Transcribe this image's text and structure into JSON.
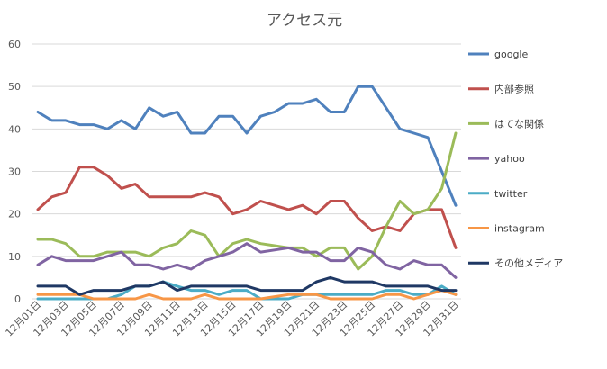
{
  "chart_data": {
    "type": "line",
    "title": "アクセス元",
    "xlabel": "",
    "ylabel": "",
    "ylim": [
      0,
      60
    ],
    "yticks": [
      "0",
      "10",
      "20",
      "30",
      "40",
      "50",
      "60"
    ],
    "grid": true,
    "legend": "right",
    "categories": [
      "12月01日",
      "12月02日",
      "12月03日",
      "12月04日",
      "12月05日",
      "12月06日",
      "12月07日",
      "12月08日",
      "12月09日",
      "12月10日",
      "12月11日",
      "12月12日",
      "12月13日",
      "12月14日",
      "12月15日",
      "12月16日",
      "12月17日",
      "12月18日",
      "12月19日",
      "12月20日",
      "12月21日",
      "12月22日",
      "12月23日",
      "12月24日",
      "12月25日",
      "12月26日",
      "12月27日",
      "12月28日",
      "12月29日",
      "12月30日",
      "12月31日"
    ],
    "tick_labels": [
      "12月01日",
      "12月03日",
      "12月05日",
      "12月07日",
      "12月09日",
      "12月11日",
      "12月13日",
      "12月15日",
      "12月17日",
      "12月19日",
      "12月21日",
      "12月23日",
      "12月25日",
      "12月27日",
      "12月29日",
      "12月31日"
    ],
    "series": [
      {
        "name": "google",
        "color": "#4f81bd",
        "values": [
          44,
          42,
          42,
          41,
          41,
          40,
          42,
          40,
          45,
          43,
          44,
          39,
          39,
          43,
          43,
          39,
          43,
          44,
          46,
          46,
          47,
          44,
          44,
          50,
          50,
          45,
          40,
          39,
          38,
          30,
          22
        ]
      },
      {
        "name": "内部参照",
        "color": "#c0504d",
        "values": [
          21,
          24,
          25,
          31,
          31,
          29,
          26,
          27,
          24,
          24,
          24,
          24,
          25,
          24,
          20,
          21,
          23,
          22,
          21,
          22,
          20,
          23,
          23,
          19,
          16,
          17,
          16,
          20,
          21,
          21,
          12
        ]
      },
      {
        "name": "はてな関係",
        "color": "#9bbb59",
        "values": [
          14,
          14,
          13,
          10,
          10,
          11,
          11,
          11,
          10,
          12,
          13,
          16,
          15,
          10,
          13,
          14,
          13,
          12.5,
          12,
          12,
          10,
          12,
          12,
          7,
          10,
          17,
          23,
          20,
          21,
          26,
          39
        ]
      },
      {
        "name": "yahoo",
        "color": "#8064a2",
        "values": [
          8,
          10,
          9,
          9,
          9,
          10,
          11,
          8,
          8,
          7,
          8,
          7,
          9,
          10,
          11,
          13,
          11,
          11.5,
          12,
          11,
          11,
          9,
          9,
          12,
          11,
          8,
          7,
          9,
          8,
          8,
          5
        ]
      },
      {
        "name": "twitter",
        "color": "#4bacc6",
        "values": [
          0,
          0,
          0,
          0,
          0,
          0,
          1,
          3,
          3,
          4,
          3,
          2,
          2,
          1,
          2,
          2,
          0,
          0,
          0,
          1,
          1,
          1,
          1,
          1,
          1,
          2,
          2,
          1,
          1,
          3,
          1
        ]
      },
      {
        "name": "instagram",
        "color": "#f79646",
        "values": [
          1,
          1,
          1,
          1,
          0,
          0,
          0,
          0,
          1,
          0,
          0,
          0,
          1,
          0,
          0,
          0,
          0,
          0.5,
          1,
          1,
          1,
          0,
          0,
          0,
          0,
          1,
          1,
          0,
          1,
          2,
          1
        ]
      },
      {
        "name": "その他メディア",
        "color": "#1f3864",
        "values": [
          3,
          3,
          3,
          1,
          2,
          2,
          2,
          3,
          3,
          4,
          2,
          3,
          3,
          3,
          3,
          3,
          2,
          2,
          2,
          2,
          4,
          5,
          4,
          4,
          4,
          3,
          3,
          3,
          3,
          2,
          2
        ]
      }
    ]
  }
}
